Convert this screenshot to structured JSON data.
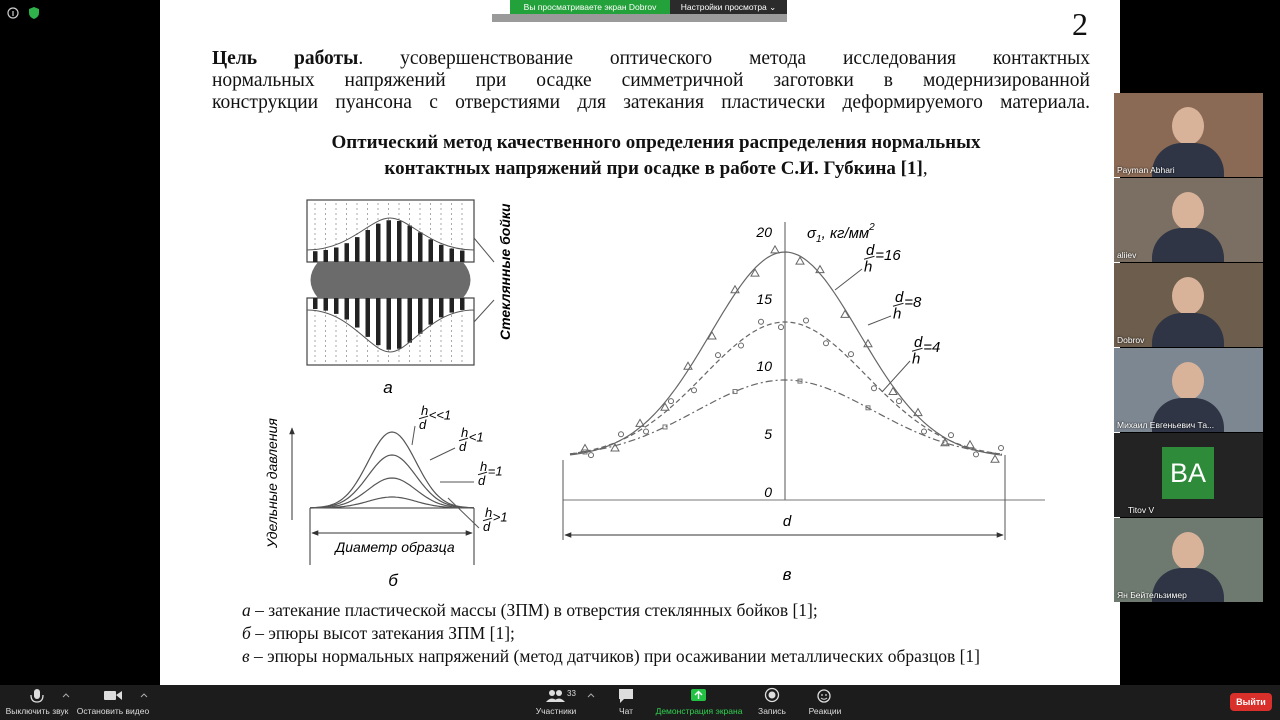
{
  "banner": {
    "viewing": "Вы просматриваете экран Dobrov",
    "settings": "Настройки просмотра"
  },
  "slide": {
    "page_number": "2",
    "goal": {
      "label": "Цель работы",
      "lines": [
        ". усовершенствование оптического метода исследования контактных",
        "нормальных напряжений при осадке симметричной заготовки в модернизированной",
        "конструкции пуансона с отверстиями для затекания пластически деформируемого материала."
      ]
    },
    "heading": {
      "lines": [
        "Оптический метод качественного определения распределения нормальных",
        "контактных напряжений при осадке в работе С.И. Губкина [1]"
      ],
      "tail": ","
    },
    "fig_a": {
      "side_label": "Стеклянные бойки",
      "letter": "а"
    },
    "fig_b": {
      "axis_label": "Удельные давления",
      "width_label": "Диаметр образца",
      "letter": "б",
      "curves": [
        {
          "num": "h",
          "den": "d",
          "rel": "<<1"
        },
        {
          "num": "h",
          "den": "d",
          "rel": "<1"
        },
        {
          "num": "h",
          "den": "d",
          "rel": "=1"
        },
        {
          "num": "h",
          "den": "d",
          "rel": ">1"
        }
      ]
    },
    "fig_c": {
      "axis": {
        "symbol": "σ",
        "sub": "1",
        "unit": ", кг/мм",
        "sup": "2"
      },
      "ticks": [
        "20",
        "15",
        "10",
        "5",
        "0"
      ],
      "curves": [
        {
          "num": "d",
          "den": "h",
          "rel": "=16"
        },
        {
          "num": "d",
          "den": "h",
          "rel": "=8"
        },
        {
          "num": "d",
          "den": "h",
          "rel": "=4"
        }
      ],
      "width_label": "d",
      "letter": "в"
    },
    "captions": [
      {
        "letter": "а",
        "text": " – затекание пластической массы (ЗПМ) в отверстия стеклянных бойков [1];"
      },
      {
        "letter": "б",
        "text": " – эпюры высот затекания ЗПМ [1];"
      },
      {
        "letter": "в",
        "text": " – эпюры нормальных напряжений (метод датчиков) при осаживании металлических образцов [1]"
      }
    ]
  },
  "participants": [
    {
      "name": "Payman Abhari"
    },
    {
      "name": "aliiev"
    },
    {
      "name": "Dobrov"
    },
    {
      "name": "Михаил Евгеньевич Та..."
    },
    {
      "name": "Titov V",
      "initials": "BA"
    },
    {
      "name": "Ян Бейтельзимер"
    }
  ],
  "toolbar": {
    "mute": "Выключить звук",
    "video": "Остановить видео",
    "participants_count": "33",
    "participants": "Участники",
    "chat": "Чат",
    "share": "Демонстрация экрана",
    "record": "Запись",
    "reactions": "Реакции",
    "leave": "Выйти"
  }
}
